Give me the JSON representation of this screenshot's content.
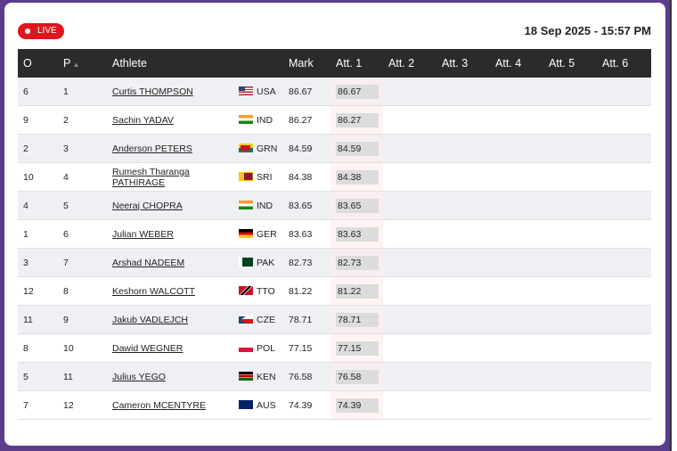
{
  "live": "LIVE",
  "date": "18 Sep 2025 - 15:57 PM",
  "columns": [
    "O",
    "P",
    "Athlete",
    "Mark",
    "Att. 1",
    "Att. 2",
    "Att. 3",
    "Att. 4",
    "Att. 5",
    "Att. 6"
  ],
  "rows": [
    {
      "order": "6",
      "place": "1",
      "athlete": "Curtis THOMPSON",
      "country": "USA",
      "mark": "86.67",
      "attempts": [
        "86.67"
      ]
    },
    {
      "order": "9",
      "place": "2",
      "athlete": "Sachin YADAV",
      "country": "IND",
      "mark": "86.27",
      "attempts": [
        "86.27"
      ]
    },
    {
      "order": "2",
      "place": "3",
      "athlete": "Anderson PETERS",
      "country": "GRN",
      "mark": "84.59",
      "attempts": [
        "84.59"
      ]
    },
    {
      "order": "10",
      "place": "4",
      "athlete": "Rumesh Tharanga PATHIRAGE",
      "country": "SRI",
      "mark": "84.38",
      "attempts": [
        "84.38"
      ]
    },
    {
      "order": "4",
      "place": "5",
      "athlete": "Neeraj CHOPRA",
      "country": "IND",
      "mark": "83.65",
      "attempts": [
        "83.65"
      ]
    },
    {
      "order": "1",
      "place": "6",
      "athlete": "Julian WEBER",
      "country": "GER",
      "mark": "83.63",
      "attempts": [
        "83.63"
      ]
    },
    {
      "order": "3",
      "place": "7",
      "athlete": "Arshad NADEEM",
      "country": "PAK",
      "mark": "82.73",
      "attempts": [
        "82.73"
      ]
    },
    {
      "order": "12",
      "place": "8",
      "athlete": "Keshorn WALCOTT",
      "country": "TTO",
      "mark": "81.22",
      "attempts": [
        "81.22"
      ]
    },
    {
      "order": "11",
      "place": "9",
      "athlete": "Jakub VADLEJCH",
      "country": "CZE",
      "mark": "78.71",
      "attempts": [
        "78.71"
      ]
    },
    {
      "order": "8",
      "place": "10",
      "athlete": "Dawid WEGNER",
      "country": "POL",
      "mark": "77.15",
      "attempts": [
        "77.15"
      ]
    },
    {
      "order": "5",
      "place": "11",
      "athlete": "Julius YEGO",
      "country": "KEN",
      "mark": "76.58",
      "attempts": [
        "76.58"
      ]
    },
    {
      "order": "7",
      "place": "12",
      "athlete": "Cameron MCENTYRE",
      "country": "AUS",
      "mark": "74.39",
      "attempts": [
        "74.39"
      ]
    }
  ]
}
